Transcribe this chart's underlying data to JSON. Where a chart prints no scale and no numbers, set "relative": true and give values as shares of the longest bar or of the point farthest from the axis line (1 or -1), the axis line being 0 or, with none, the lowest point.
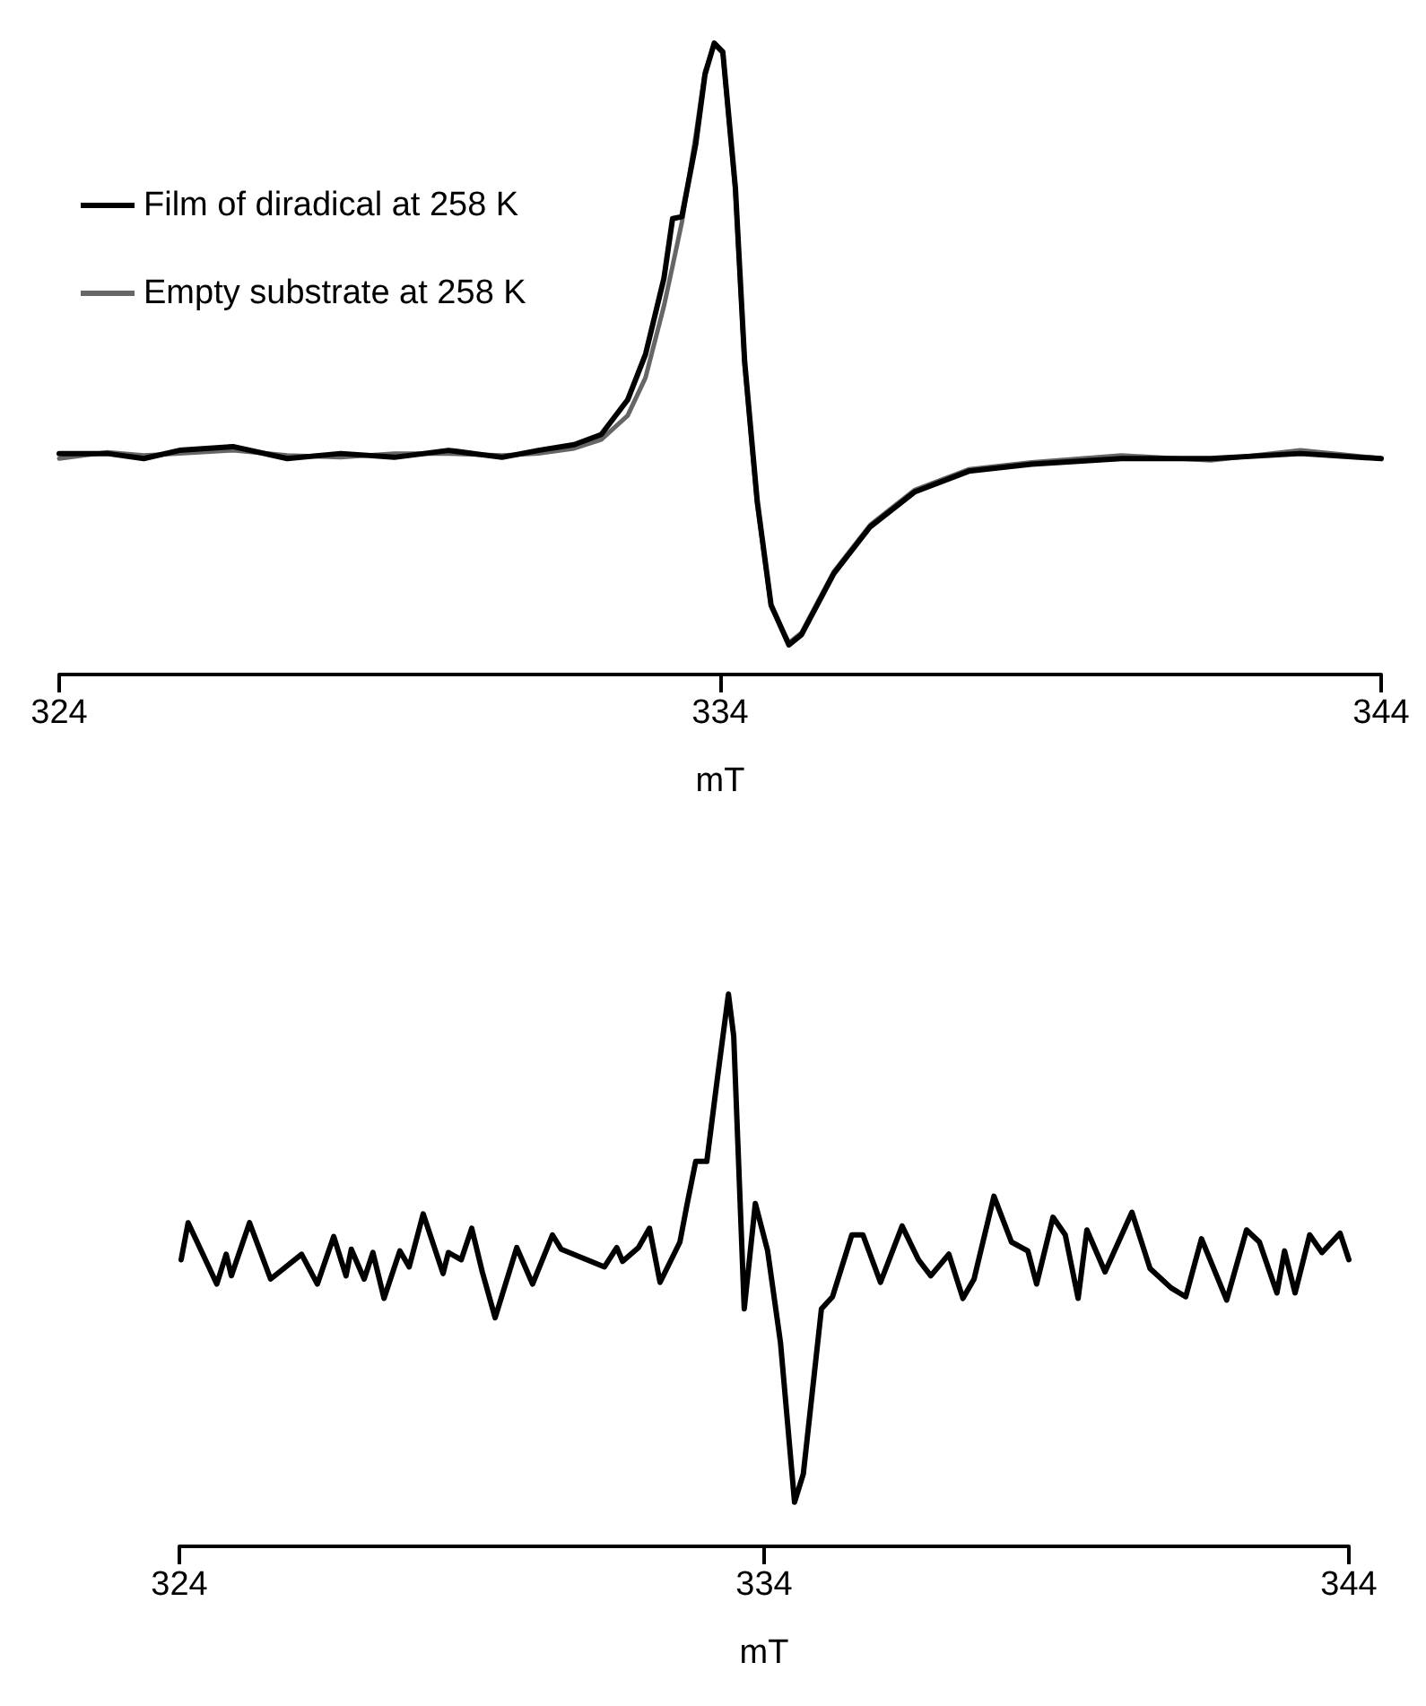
{
  "chart_data": [
    {
      "type": "line",
      "relative": true,
      "xlabel": "mT",
      "xlim": [
        324,
        344
      ],
      "xticks": [
        324,
        334,
        344
      ],
      "legend": "top left",
      "grid": false,
      "marker": "none",
      "line_style": "solid",
      "series": [
        {
          "name": "Film of diradical at 258 K",
          "color": "#000000",
          "x": [
            324.0,
            324.73,
            325.28,
            325.82,
            326.63,
            327.45,
            328.26,
            329.07,
            329.89,
            330.7,
            331.25,
            331.79,
            332.2,
            332.6,
            332.87,
            333.15,
            333.28,
            333.42,
            333.63,
            333.77,
            333.91,
            334.04,
            334.23,
            334.37,
            334.56,
            334.77,
            335.04,
            335.23,
            335.72,
            336.27,
            336.94,
            337.76,
            338.71,
            340.07,
            341.42,
            342.78,
            344.0
          ],
          "values": [
            0.35,
            0.35,
            0.342,
            0.355,
            0.361,
            0.342,
            0.35,
            0.344,
            0.355,
            0.344,
            0.355,
            0.364,
            0.38,
            0.435,
            0.507,
            0.628,
            0.722,
            0.725,
            0.84,
            0.95,
            1,
            0.986,
            0.771,
            0.496,
            0.275,
            0.11,
            0.047,
            0.063,
            0.16,
            0.234,
            0.289,
            0.322,
            0.333,
            0.342,
            0.342,
            0.35,
            0.342
          ]
        },
        {
          "name": "Empty substrate at 258 K",
          "color": "#666666",
          "x": [
            324.0,
            324.73,
            325.28,
            325.82,
            326.63,
            327.45,
            328.26,
            329.07,
            329.89,
            330.7,
            331.25,
            331.79,
            332.2,
            332.6,
            332.87,
            333.15,
            333.28,
            333.42,
            333.63,
            333.77,
            333.91,
            334.04,
            334.23,
            334.37,
            334.56,
            334.77,
            335.04,
            335.23,
            335.72,
            336.27,
            336.94,
            337.76,
            338.71,
            340.07,
            341.42,
            342.78,
            344.0
          ],
          "values": [
            0.342,
            0.352,
            0.347,
            0.35,
            0.355,
            0.347,
            0.344,
            0.35,
            0.35,
            0.347,
            0.35,
            0.358,
            0.372,
            0.41,
            0.47,
            0.584,
            0.647,
            0.716,
            0.854,
            0.955,
            0.998,
            0.984,
            0.765,
            0.49,
            0.27,
            0.108,
            0.05,
            0.066,
            0.163,
            0.237,
            0.292,
            0.325,
            0.336,
            0.347,
            0.339,
            0.355,
            0.342
          ]
        }
      ]
    },
    {
      "type": "line",
      "relative": true,
      "xlabel": "mT",
      "xlim": [
        324,
        344
      ],
      "xticks": [
        324,
        334,
        344
      ],
      "legend": false,
      "grid": false,
      "marker": "none",
      "line_style": "solid",
      "series": [
        {
          "color": "#000000",
          "x": [
            324.03,
            324.15,
            324.64,
            324.8,
            324.89,
            325.2,
            325.56,
            326.09,
            326.36,
            326.64,
            326.85,
            326.94,
            327.16,
            327.31,
            327.5,
            327.77,
            327.93,
            328.17,
            328.51,
            328.6,
            328.82,
            329.0,
            329.18,
            329.4,
            329.77,
            330.04,
            330.38,
            330.53,
            331.27,
            331.48,
            331.58,
            331.85,
            332.04,
            332.22,
            332.56,
            332.68,
            332.83,
            333.02,
            333.2,
            333.39,
            333.48,
            333.66,
            333.85,
            334.06,
            334.28,
            334.52,
            334.67,
            334.98,
            335.17,
            335.5,
            335.69,
            335.99,
            336.36,
            336.64,
            336.85,
            337.16,
            337.4,
            337.59,
            337.93,
            338.23,
            338.51,
            338.66,
            338.94,
            339.15,
            339.37,
            339.52,
            339.83,
            340.29,
            340.6,
            340.96,
            341.21,
            341.48,
            341.91,
            342.25,
            342.47,
            342.77,
            342.9,
            343.08,
            343.33,
            343.54,
            343.85,
            344.0
          ],
          "values": [
            0.519,
            0.586,
            0.475,
            0.529,
            0.49,
            0.586,
            0.484,
            0.529,
            0.475,
            0.561,
            0.49,
            0.538,
            0.484,
            0.532,
            0.449,
            0.535,
            0.506,
            0.602,
            0.494,
            0.532,
            0.519,
            0.576,
            0.497,
            0.414,
            0.541,
            0.475,
            0.564,
            0.538,
            0.506,
            0.541,
            0.516,
            0.541,
            0.576,
            0.478,
            0.551,
            0.618,
            0.697,
            0.697,
            0.847,
            1,
            0.924,
            0.43,
            0.621,
            0.535,
            0.369,
            0.08,
            0.131,
            0.43,
            0.452,
            0.564,
            0.564,
            0.478,
            0.58,
            0.519,
            0.49,
            0.529,
            0.449,
            0.484,
            0.634,
            0.551,
            0.535,
            0.475,
            0.596,
            0.564,
            0.449,
            0.573,
            0.497,
            0.605,
            0.503,
            0.468,
            0.452,
            0.557,
            0.446,
            0.573,
            0.551,
            0.459,
            0.535,
            0.459,
            0.564,
            0.532,
            0.567,
            0.519
          ]
        }
      ]
    }
  ]
}
